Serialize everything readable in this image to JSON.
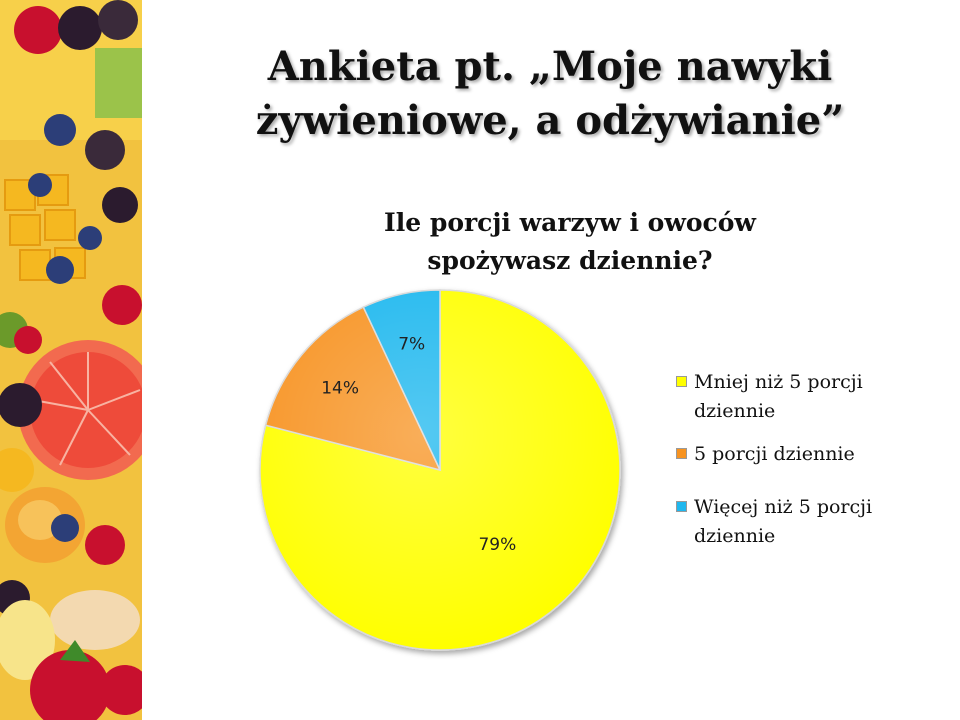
{
  "slide": {
    "title_line1": "Ankieta pt. „Moje nawyki",
    "title_line2": "żywieniowe, a odżywianie”"
  },
  "chart_data": {
    "type": "pie",
    "title_line1": "Ile porcji warzyw i owoców",
    "title_line2": "spożywasz dziennie?",
    "slices": [
      {
        "name": "Mniej niż 5 porcji dziennie",
        "value": 79,
        "label": "79%",
        "color": "#ffff00"
      },
      {
        "name": "5 porcji dziennie",
        "value": 14,
        "label": "14%",
        "color": "#f79320"
      },
      {
        "name": "Więcej niż 5 porcji dziennie",
        "value": 7,
        "label": "7%",
        "color": "#1fb7ee"
      }
    ],
    "legend": {
      "position": "right",
      "items": [
        {
          "line1": "Mniej niż 5 porcji",
          "line2": "dziennie",
          "color": "#ffff00"
        },
        {
          "line1": "5 porcji dziennie",
          "line2": "",
          "color": "#f79320"
        },
        {
          "line1": "Więcej niż 5 porcji",
          "line2": "dziennie",
          "color": "#1fb7ee"
        }
      ]
    }
  }
}
